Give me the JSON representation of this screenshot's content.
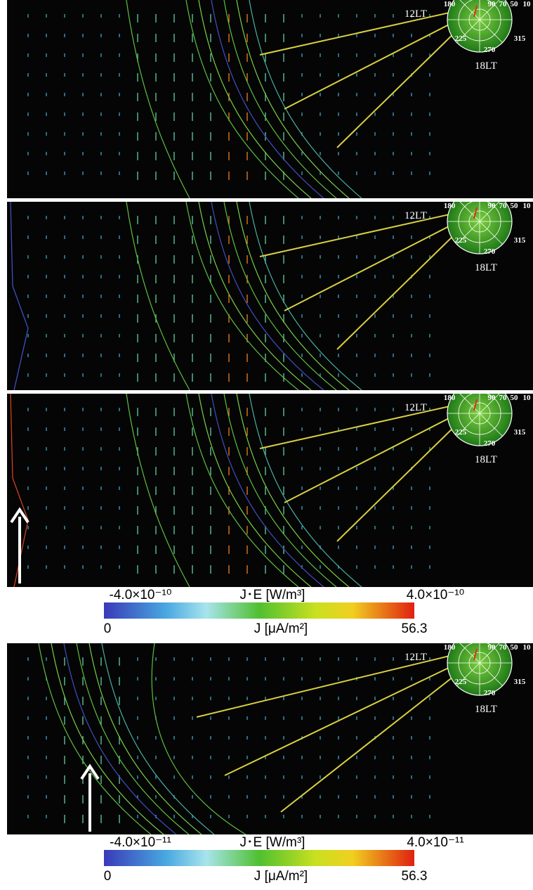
{
  "panels": [
    {
      "noon_label": "12LT",
      "dusk_label": "18LT",
      "dial_labels": [
        "180",
        "90",
        "70",
        "50",
        "10",
        "225",
        "270",
        "315"
      ]
    },
    {
      "noon_label": "12LT",
      "dusk_label": "18LT",
      "dial_labels": [
        "180",
        "90",
        "70",
        "50",
        "10",
        "225",
        "270",
        "315"
      ]
    },
    {
      "noon_label": "12LT",
      "dusk_label": "18LT",
      "dial_labels": [
        "180",
        "90",
        "70",
        "50",
        "10",
        "225",
        "270",
        "315"
      ]
    },
    {
      "noon_label": "12LT",
      "dusk_label": "18LT",
      "dial_labels": [
        "180",
        "90",
        "70",
        "50",
        "10",
        "225",
        "270",
        "315"
      ]
    }
  ],
  "colorbars": [
    {
      "je_min": "-4.0×10⁻¹⁰",
      "je_label": "J･E  [W/m³]",
      "je_max": "4.0×10⁻¹⁰",
      "j_min": "0",
      "j_label": "J  [μA/m²]",
      "j_max": "56.3"
    },
    {
      "je_min": "-4.0×10⁻¹¹",
      "je_label": "J･E  [W/m³]",
      "je_max": "4.0×10⁻¹¹",
      "j_min": "0",
      "j_label": "J  [μA/m²]",
      "j_max": "56.3"
    }
  ]
}
